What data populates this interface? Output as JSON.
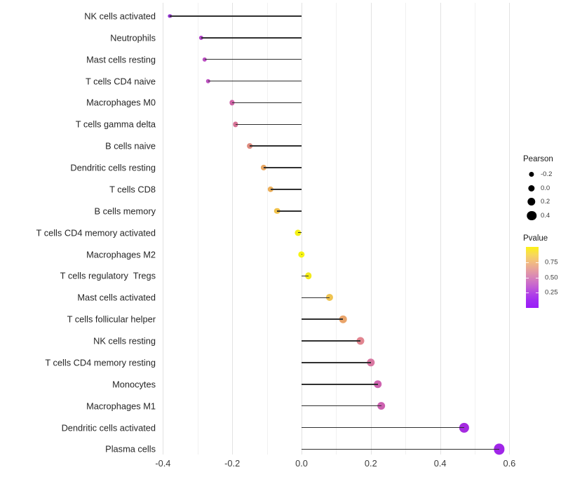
{
  "chart_data": {
    "type": "scatter",
    "variant": "lollipop",
    "title": "",
    "xlabel": "",
    "ylabel": "",
    "xlim": [
      -0.43,
      0.62
    ],
    "x_ticks": [
      -0.4,
      -0.2,
      0.0,
      0.2,
      0.4,
      0.6
    ],
    "x_tick_labels": [
      "-0.4",
      "-0.2",
      "0.0",
      "0.2",
      "0.4",
      "0.6"
    ],
    "grid": "vertical-only, major every 0.2, minor every 0.1, light gray on white",
    "categories": [
      "NK cells activated",
      "Neutrophils",
      "Mast cells resting",
      "T cells CD4 naive",
      "Macrophages M0",
      "T cells gamma delta",
      "B cells naive",
      "Dendritic cells resting",
      "T cells CD8",
      "B cells memory",
      "T cells CD4 memory activated",
      "Macrophages M2",
      "T cells regulatory  Tregs",
      "Mast cells activated",
      "T cells follicular helper",
      "NK cells resting",
      "T cells CD4 memory resting",
      "Monocytes",
      "Macrophages M1",
      "Dendritic cells activated",
      "Plasma cells"
    ],
    "series": [
      {
        "name": "Pearson",
        "values": [
          -0.38,
          -0.29,
          -0.28,
          -0.27,
          -0.2,
          -0.19,
          -0.15,
          -0.11,
          -0.09,
          -0.07,
          -0.01,
          0.0,
          0.02,
          0.08,
          0.12,
          0.17,
          0.2,
          0.22,
          0.23,
          0.47,
          0.57
        ]
      }
    ],
    "point_colors": [
      "#9333D1",
      "#B042C6",
      "#BA4EC1",
      "#BC52BF",
      "#CE63A6",
      "#D67295",
      "#DE8A7E",
      "#E8A763",
      "#ECAF5A",
      "#F0C14A",
      "#F4F115",
      "#F6F414",
      "#F2EA1C",
      "#EFC350",
      "#E9A46A",
      "#E18590",
      "#D877A2",
      "#CE63AF",
      "#CC61B0",
      "#A52BE0",
      "#A026E8"
    ],
    "stem_color": "#303030",
    "legends": {
      "position": "right, vertically centered",
      "size": {
        "title": "Pearson",
        "breaks": [
          "-0.2",
          "0.0",
          "0.2",
          "0.4"
        ],
        "break_values": [
          -0.2,
          0.0,
          0.2,
          0.4
        ],
        "dot_color": "#000000"
      },
      "color": {
        "title": "Pvalue",
        "tick_labels": [
          "0.75",
          "0.50",
          "0.25"
        ],
        "tick_values": [
          0.75,
          0.5,
          0.25
        ],
        "range": [
          0,
          1
        ],
        "gradient_stops": [
          "#FCF115",
          "#F7D95A",
          "#F2BC80",
          "#E6A09E",
          "#D884B8",
          "#C766CF",
          "#B446E3",
          "#A12BF2",
          "#9A1CF8"
        ]
      }
    }
  }
}
